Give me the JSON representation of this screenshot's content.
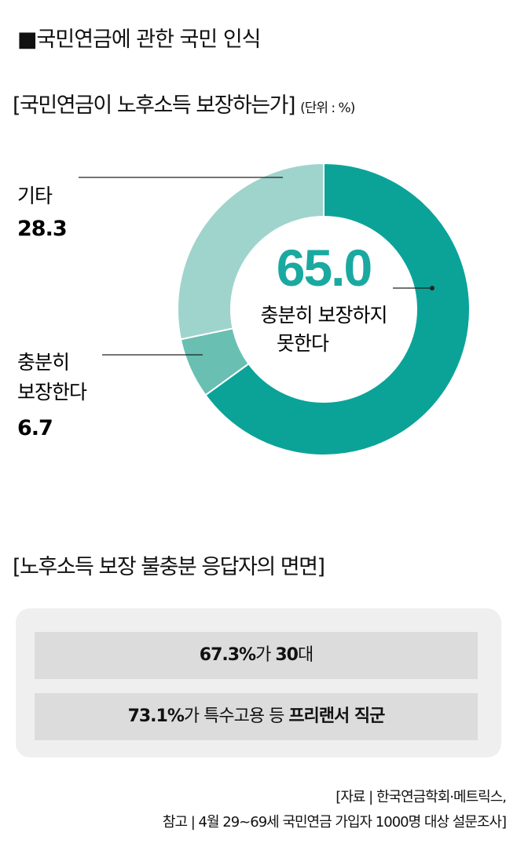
{
  "title": "■국민연금에 관한 국민 인식",
  "subtitle1": "[국민연금이 노후소득 보장하는가]",
  "unit": "(단위 : %)",
  "chart_data": {
    "type": "pie",
    "title": "[국민연금이 노후소득 보장하는가]",
    "unit": "%",
    "slices": [
      {
        "label": "충분히 보장하지 못한다",
        "value": 65.0,
        "display": "65.0",
        "color": "#0ba398"
      },
      {
        "label": "충분히 보장한다",
        "value": 6.7,
        "display": "6.7",
        "color": "#68bfb2"
      },
      {
        "label": "기타",
        "value": 28.3,
        "display": "28.3",
        "color": "#9fd4cd"
      }
    ],
    "center_label_lines": [
      "충분히 보장하지",
      "못한다"
    ],
    "left_label_lines": [
      "충분히",
      "보장한다"
    ]
  },
  "subtitle2": "[노후소득 보장 불충분 응답자의 면면]",
  "facts": [
    {
      "bold1": "67.3%",
      "normal": "가 ",
      "bold2": "30",
      "normal2": "대"
    },
    {
      "bold1": "73.1%",
      "normal": "가 특수고용 등 ",
      "bold2": "프리랜서 직군",
      "normal2": ""
    }
  ],
  "source_lines": [
    "[자료 | 한국연금학회·메트릭스,",
    "참고 | 4월 29~69세 국민연금 가입자 1000명 대상 설문조사]"
  ]
}
